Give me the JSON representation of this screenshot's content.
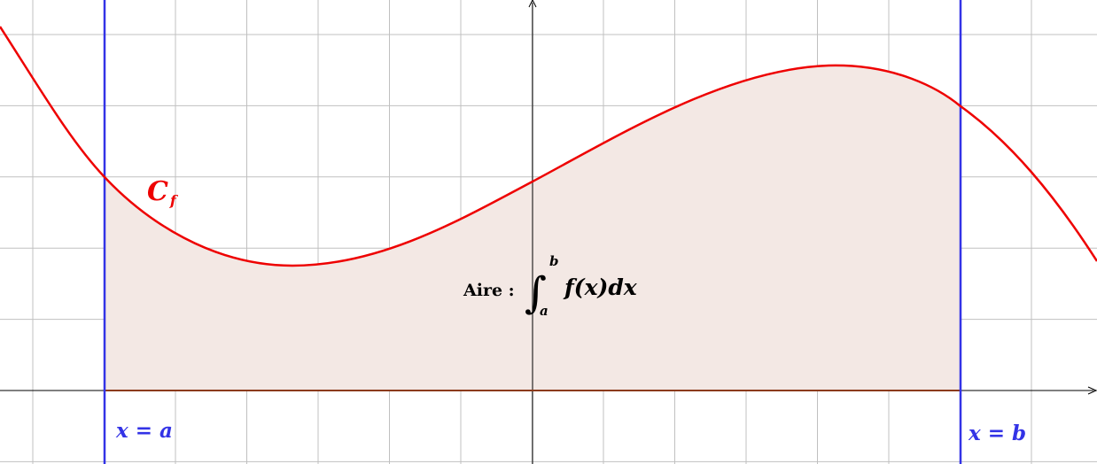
{
  "figure": {
    "curve_label": {
      "main": "C",
      "sub": "f"
    },
    "left_bound_label": "x = a",
    "right_bound_label": "x = b",
    "area_label": {
      "prefix": "Aire :",
      "integral_sign": "∫",
      "upper_limit": "b",
      "lower_limit": "a",
      "integrand": "f(x)dx"
    }
  },
  "colors": {
    "curve": "#ee0000",
    "bounds": "#3333e6",
    "area_fill": "#f3e8e4",
    "baseline": "#8b3a1a",
    "grid": "#c0c0c0",
    "axis": "#000000"
  }
}
